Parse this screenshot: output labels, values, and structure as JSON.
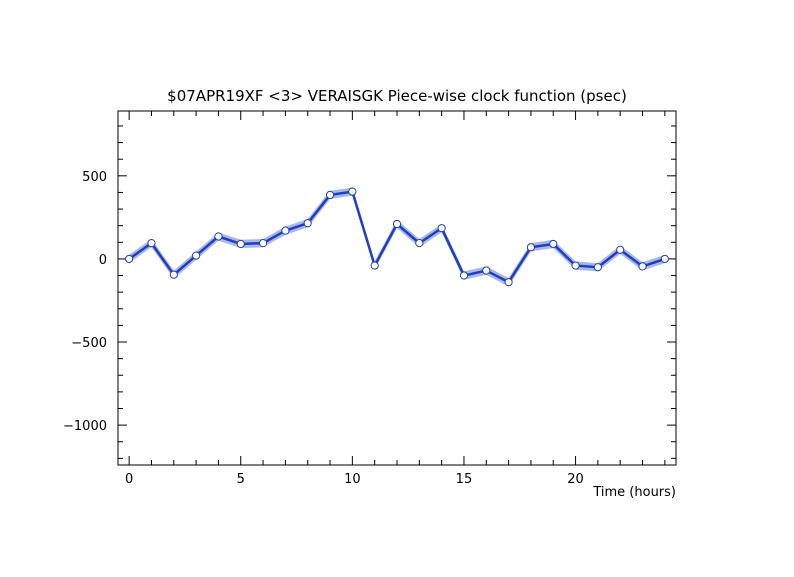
{
  "chart_data": {
    "type": "line",
    "title": "$07APR19XF <3>  VERAISGK  Piece-wise clock function (psec)",
    "xlabel": "Time (hours)",
    "ylabel": "",
    "xlim": [
      -0.5,
      24.5
    ],
    "ylim": [
      -1240,
      890
    ],
    "x_ticks": [
      0,
      5,
      10,
      15,
      20
    ],
    "y_ticks": [
      500,
      0,
      -500,
      -1000
    ],
    "grid": false,
    "colors": {
      "line": "#1f3fbf",
      "band": "#aab8e8",
      "marker_fill": "#ffffff",
      "marker_edge": "#1f3fbf",
      "axes": "#000000"
    },
    "series": [
      {
        "x": [
          0,
          1,
          2,
          3,
          4,
          5,
          6,
          7,
          8,
          9,
          10,
          11,
          12,
          13,
          14,
          15,
          16,
          17,
          18,
          19,
          20,
          21,
          22,
          23,
          24
        ],
        "y": [
          0,
          95,
          -95,
          20,
          135,
          90,
          95,
          170,
          215,
          385,
          405,
          -40,
          210,
          95,
          185,
          -100,
          -70,
          -140,
          70,
          90,
          -40,
          -50,
          55,
          -45,
          0
        ],
        "band": 25
      }
    ]
  }
}
